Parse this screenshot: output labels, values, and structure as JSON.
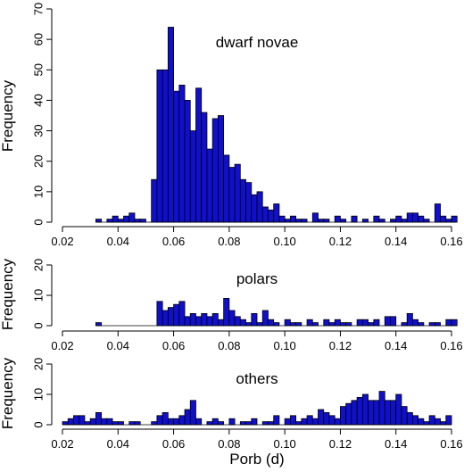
{
  "chart_data": [
    {
      "type": "bar",
      "panel_label": "dwarf novae",
      "ylabel": "Frequency",
      "xlabel": "",
      "xlim": [
        0.02,
        0.16
      ],
      "ylim": [
        0,
        70
      ],
      "x_ticks": [
        "0.02",
        "0.04",
        "0.06",
        "0.08",
        "0.10",
        "0.12",
        "0.14",
        "0.16"
      ],
      "y_ticks": [
        "0",
        "10",
        "20",
        "30",
        "40",
        "50",
        "60",
        "70"
      ],
      "bin_width": 0.002,
      "bins_start": 0.032,
      "values": [
        1,
        0,
        1,
        2,
        1,
        2,
        3,
        1,
        1,
        0,
        14,
        50,
        50,
        64,
        43,
        45,
        40,
        30,
        44,
        36,
        24,
        34,
        35,
        22,
        18,
        19,
        14,
        13,
        9,
        10,
        5,
        4,
        6,
        2,
        1,
        2,
        1,
        1,
        0,
        3,
        1,
        1,
        0,
        2,
        1,
        0,
        2,
        0,
        1,
        0,
        2,
        1,
        0,
        1,
        2,
        1,
        3,
        3,
        2,
        1,
        0,
        6,
        2,
        1,
        2
      ],
      "color": "#1010cc"
    },
    {
      "type": "bar",
      "panel_label": "polars",
      "ylabel": "Frequency",
      "xlabel": "",
      "xlim": [
        0.02,
        0.16
      ],
      "ylim": [
        0,
        20
      ],
      "x_ticks": [
        "0.02",
        "0.04",
        "0.06",
        "0.08",
        "0.10",
        "0.12",
        "0.14",
        "0.16"
      ],
      "y_ticks": [
        "0",
        "10",
        "20"
      ],
      "bin_width": 0.002,
      "bins_start": 0.032,
      "values": [
        1,
        0,
        0,
        0,
        0,
        0,
        0,
        0,
        0,
        0,
        0,
        8,
        5,
        6,
        7,
        8,
        3,
        4,
        3,
        4,
        3,
        4,
        2,
        9,
        5,
        3,
        2,
        1,
        4,
        1,
        5,
        2,
        1,
        0,
        2,
        1,
        1,
        0,
        2,
        1,
        0,
        2,
        1,
        2,
        1,
        1,
        0,
        2,
        2,
        1,
        2,
        0,
        3,
        3,
        0,
        1,
        4,
        2,
        1,
        0,
        1,
        1,
        0,
        2,
        2
      ],
      "color": "#1010cc"
    },
    {
      "type": "bar",
      "panel_label": "others",
      "ylabel": "Frequency",
      "xlabel": "Porb (d)",
      "xlim": [
        0.02,
        0.16
      ],
      "ylim": [
        0,
        20
      ],
      "x_ticks": [
        "0.02",
        "0.04",
        "0.06",
        "0.08",
        "0.10",
        "0.12",
        "0.14",
        "0.16"
      ],
      "y_ticks": [
        "0",
        "10",
        "20"
      ],
      "bin_width": 0.002,
      "bins_start": 0.02,
      "values": [
        1,
        2,
        3,
        3,
        1,
        2,
        4,
        2,
        2,
        1,
        1,
        0,
        1,
        1,
        0,
        0,
        1,
        3,
        4,
        2,
        2,
        3,
        5,
        8,
        2,
        0,
        1,
        2,
        1,
        0,
        2,
        0,
        1,
        1,
        2,
        0,
        1,
        1,
        3,
        0,
        2,
        3,
        1,
        2,
        3,
        2,
        5,
        4,
        3,
        2,
        6,
        7,
        8,
        9,
        10,
        8,
        8,
        11,
        8,
        8,
        10,
        6,
        4,
        3,
        2,
        1,
        3,
        2,
        1,
        3
      ],
      "color": "#1010cc"
    }
  ]
}
